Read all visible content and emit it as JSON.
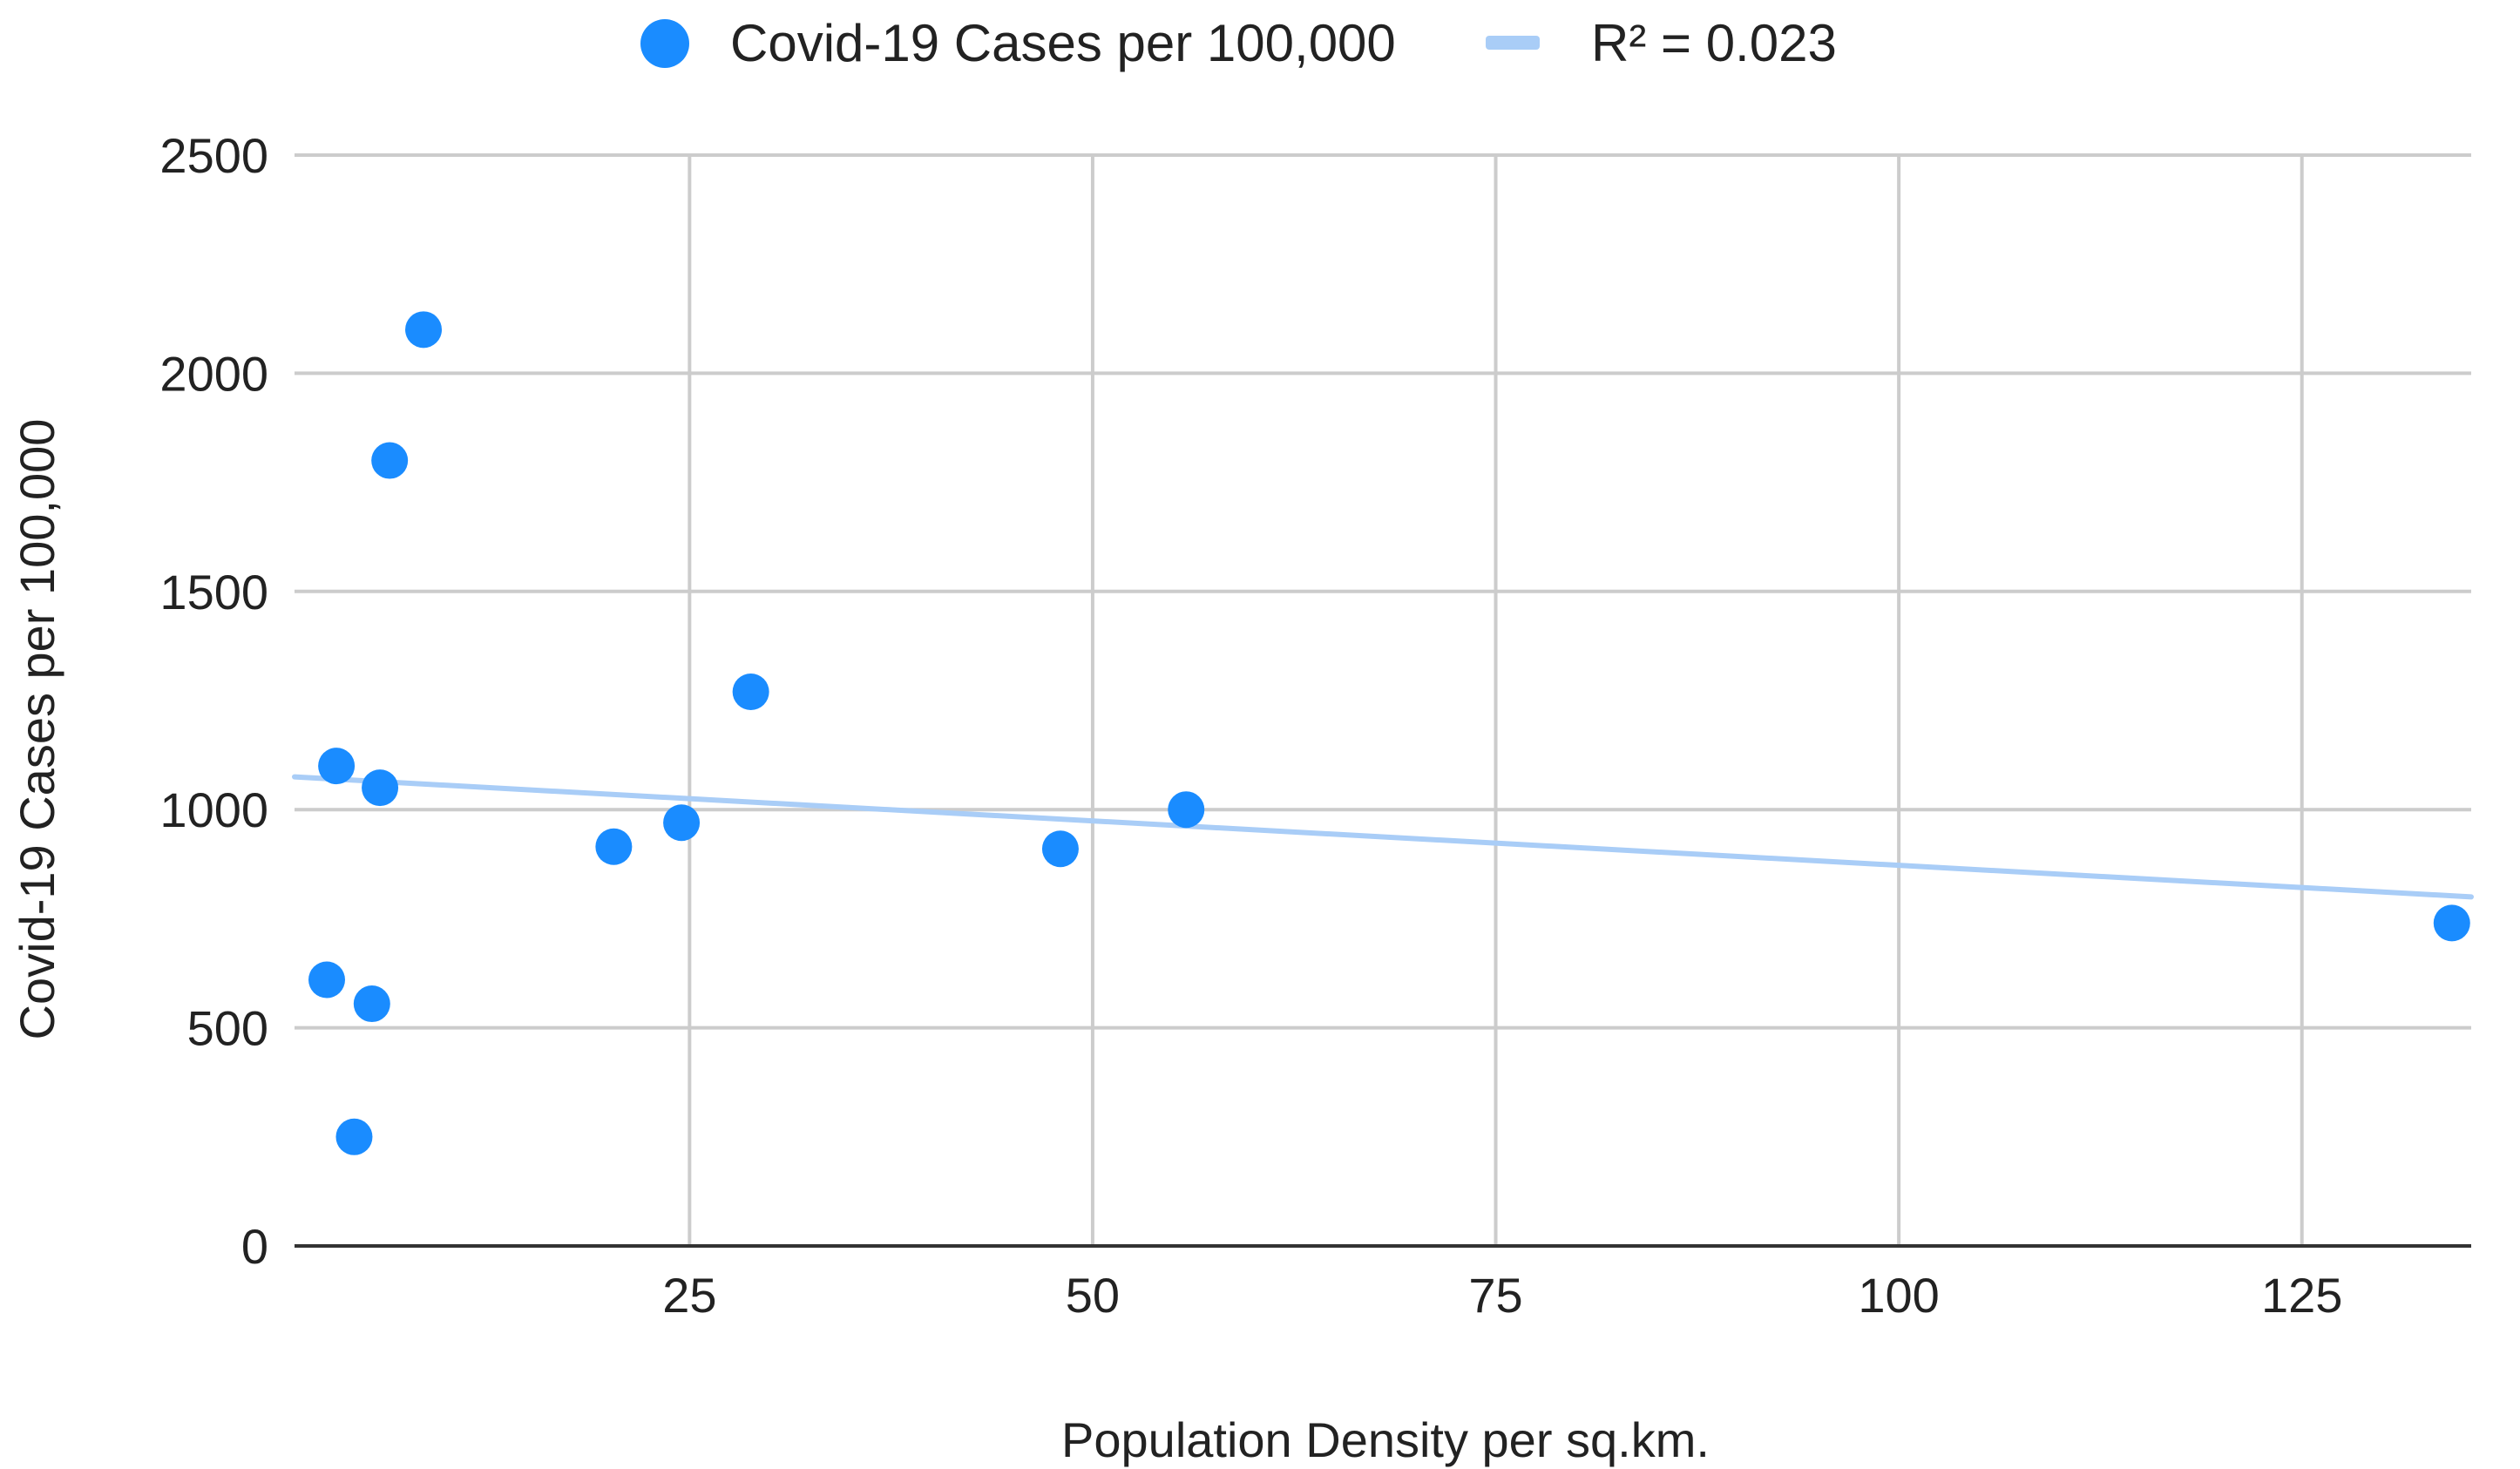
{
  "chart_data": {
    "type": "scatter",
    "title": "",
    "xlabel": "Population Density per sq.km.",
    "ylabel": "Covid-19 Cases per 100,000",
    "xlim": [
      0.5,
      135.5
    ],
    "ylim": [
      0,
      2500
    ],
    "x_ticks": [
      25,
      50,
      75,
      100,
      125
    ],
    "x_tick_labels": [
      "25",
      "50",
      "75",
      "100",
      "125"
    ],
    "y_ticks": [
      0,
      500,
      1000,
      1500,
      2000,
      2500
    ],
    "y_tick_labels": [
      "0",
      "500",
      "1000",
      "1500",
      "2000",
      "2500"
    ],
    "grid": true,
    "legend_position": "top",
    "series": [
      {
        "name": "Covid-19 Cases per 100,000",
        "color": "#1a8cff",
        "points": [
          {
            "x": 2.5,
            "y": 610
          },
          {
            "x": 3.1,
            "y": 1100
          },
          {
            "x": 4.2,
            "y": 250
          },
          {
            "x": 5.3,
            "y": 555
          },
          {
            "x": 5.8,
            "y": 1050
          },
          {
            "x": 6.4,
            "y": 1800
          },
          {
            "x": 8.5,
            "y": 2100
          },
          {
            "x": 20.3,
            "y": 915
          },
          {
            "x": 24.5,
            "y": 970
          },
          {
            "x": 28.8,
            "y": 1270
          },
          {
            "x": 48.0,
            "y": 910
          },
          {
            "x": 55.8,
            "y": 1000
          },
          {
            "x": 134.3,
            "y": 740
          }
        ]
      }
    ],
    "trendline": {
      "label": "R² = 0.023",
      "color": "#a9cdf7",
      "start": {
        "x": 0.5,
        "y": 1075
      },
      "end": {
        "x": 135.5,
        "y": 800
      }
    }
  }
}
